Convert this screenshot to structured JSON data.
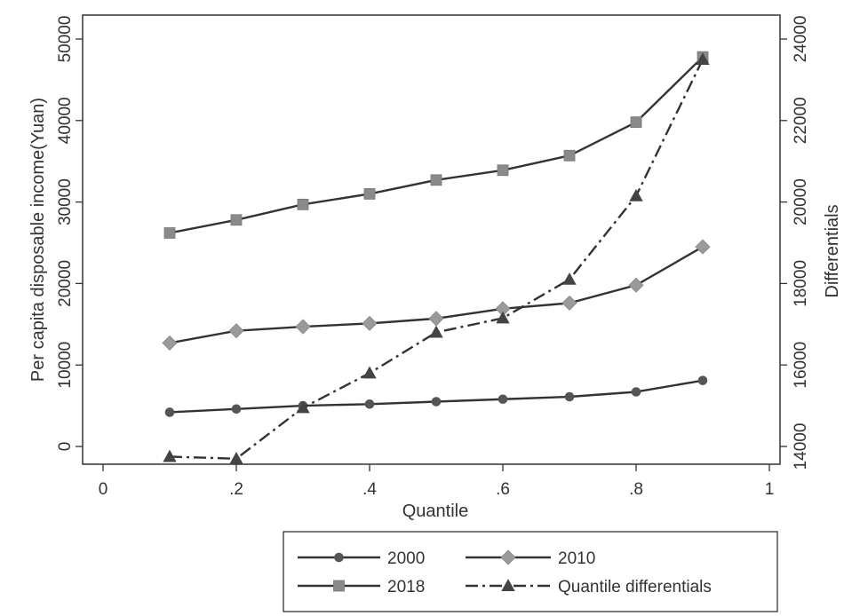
{
  "chart_data": {
    "type": "line",
    "title": "",
    "xlabel": "Quantile",
    "ylabel": "Per capita disposable income(Yuan)",
    "y2label": "Differentials",
    "xlim": [
      0,
      1
    ],
    "ylim": [
      -2000,
      50000
    ],
    "y2lim": [
      13500,
      24000
    ],
    "x_ticks": [
      0,
      0.2,
      0.4,
      0.6,
      0.8,
      1
    ],
    "x_tick_labels": [
      "0",
      ".2",
      ".4",
      ".6",
      ".8",
      "1"
    ],
    "y_ticks": [
      0,
      10000,
      20000,
      30000,
      40000,
      50000
    ],
    "y_tick_labels": [
      "0",
      "10000",
      "20000",
      "30000",
      "40000",
      "50000"
    ],
    "y2_ticks": [
      14000,
      16000,
      18000,
      20000,
      22000,
      24000
    ],
    "y2_tick_labels": [
      "14000",
      "16000",
      "18000",
      "20000",
      "22000",
      "24000"
    ],
    "grid": false,
    "legend_position": "bottom",
    "x": [
      0.1,
      0.2,
      0.3,
      0.4,
      0.5,
      0.6,
      0.7,
      0.8,
      0.9
    ],
    "series": [
      {
        "name": "2000",
        "axis": "left",
        "marker": "circle",
        "dash": "solid",
        "color": "#555555",
        "values": [
          4200,
          4600,
          5000,
          5200,
          5500,
          5800,
          6100,
          6700,
          8100
        ]
      },
      {
        "name": "2010",
        "axis": "left",
        "marker": "diamond",
        "dash": "solid",
        "color": "#9a9a9a",
        "values": [
          12700,
          14200,
          14700,
          15100,
          15700,
          16900,
          17600,
          19800,
          24500
        ]
      },
      {
        "name": "2018",
        "axis": "left",
        "marker": "square",
        "dash": "solid",
        "color": "#8a8a8a",
        "values": [
          26200,
          27800,
          29700,
          31000,
          32700,
          33900,
          35700,
          39800,
          47800
        ]
      },
      {
        "name": "Quantile differentials",
        "axis": "right",
        "marker": "triangle",
        "dash": "dashdot",
        "color": "#444444",
        "values": [
          13750,
          13700,
          14950,
          15800,
          16800,
          17150,
          18100,
          20150,
          23500
        ]
      }
    ]
  }
}
